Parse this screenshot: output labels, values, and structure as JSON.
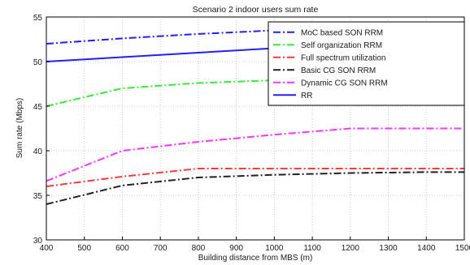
{
  "chart_data": {
    "type": "line",
    "title": "Scenario 2 indoor users sum rate",
    "xlabel": "Building distance from MBS (m)",
    "ylabel": "Sum rate (Mbps)",
    "xlim": [
      400,
      1500
    ],
    "ylim": [
      30,
      55
    ],
    "xticks": [
      400,
      500,
      600,
      700,
      800,
      900,
      1000,
      1100,
      1200,
      1300,
      1400,
      1500
    ],
    "yticks": [
      30,
      35,
      40,
      45,
      50,
      55
    ],
    "grid": true,
    "legend_position": "top-right",
    "x": [
      400,
      600,
      800,
      1000,
      1200,
      1400,
      1500
    ],
    "series": [
      {
        "name": "MoC based SON RRM",
        "color": "#1f1fff",
        "dash": "dashdot",
        "values": [
          52.0,
          52.6,
          53.1,
          53.5,
          53.8,
          54.0,
          54.1
        ]
      },
      {
        "name": "Self organization RRM",
        "color": "#33ee33",
        "dash": "dashdot",
        "values": [
          45.0,
          47.0,
          47.6,
          47.9,
          48.1,
          48.2,
          48.3
        ]
      },
      {
        "name": "Full spectrum utilization",
        "color": "#ff3a3a",
        "dash": "dashdot",
        "values": [
          36.0,
          37.1,
          38.0,
          38.0,
          38.0,
          38.0,
          38.0
        ]
      },
      {
        "name": "Basic CG SON RRM",
        "color": "#222222",
        "dash": "dashdot",
        "values": [
          34.0,
          36.1,
          37.0,
          37.3,
          37.5,
          37.6,
          37.6
        ]
      },
      {
        "name": "Dynamic CG SON RRM",
        "color": "#ff33ff",
        "dash": "dashdot",
        "values": [
          36.6,
          40.0,
          41.0,
          41.8,
          42.5,
          42.5,
          42.5
        ]
      },
      {
        "name": "RR",
        "color": "#1f1fff",
        "dash": "solid",
        "values": [
          50.0,
          50.5,
          51.0,
          51.5,
          52.0,
          52.4,
          52.6
        ]
      }
    ]
  }
}
